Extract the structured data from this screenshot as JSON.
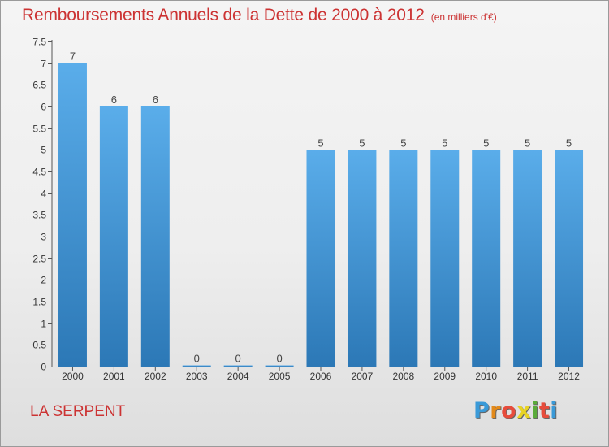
{
  "title": "Remboursements Annuels de la Dette de 2000 à 2012",
  "subtitle": "(en milliers d'€)",
  "commune": "LA SERPENT",
  "logo": {
    "text": "Proxiti",
    "colors": [
      "#3a9ad8",
      "#e38a1a",
      "#e74c3c",
      "#e8d324",
      "#5aab3a",
      "#e74c3c",
      "#3a9ad8"
    ]
  },
  "colors": {
    "bar_top": "#5aadea",
    "bar_bottom": "#2c78b6",
    "accent": "#cc3333",
    "axis": "#555555"
  },
  "chart_data": {
    "type": "bar",
    "categories": [
      "2000",
      "2001",
      "2002",
      "2003",
      "2004",
      "2005",
      "2006",
      "2007",
      "2008",
      "2009",
      "2010",
      "2011",
      "2012"
    ],
    "values": [
      7,
      6,
      6,
      0,
      0,
      0,
      5,
      5,
      5,
      5,
      5,
      5,
      5
    ],
    "data_labels": [
      "7",
      "6",
      "6",
      "0",
      "0",
      "0",
      "5",
      "5",
      "5",
      "5",
      "5",
      "5",
      "5"
    ],
    "ylim": [
      0,
      7.5
    ],
    "yticks": [
      0,
      0.5,
      1,
      1.5,
      2,
      2.5,
      3,
      3.5,
      4,
      4.5,
      5,
      5.5,
      6,
      6.5,
      7,
      7.5
    ],
    "ytick_labels": [
      "0",
      "0.5",
      "1",
      "1.5",
      "2",
      "2.5",
      "3",
      "3.5",
      "4",
      "4.5",
      "5",
      "5.5",
      "6",
      "6.5",
      "7",
      "7.5"
    ],
    "grid": false,
    "legend": "none"
  }
}
